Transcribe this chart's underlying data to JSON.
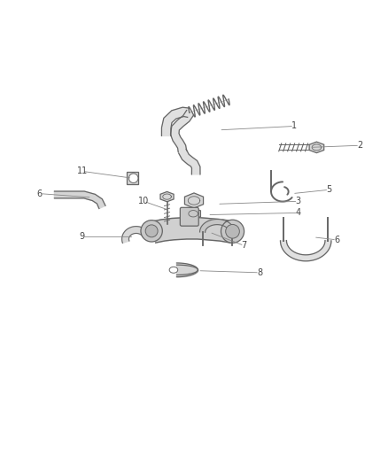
{
  "background_color": "#ffffff",
  "fig_width": 4.38,
  "fig_height": 5.33,
  "dpi": 100,
  "outline_color": "#666666",
  "label_color": "#444444",
  "leader_color": "#888888",
  "label_map": {
    "1": [
      0.76,
      0.785,
      0.565,
      0.775
    ],
    "2": [
      0.93,
      0.735,
      0.8,
      0.73
    ],
    "3": [
      0.77,
      0.59,
      0.56,
      0.583
    ],
    "4": [
      0.77,
      0.56,
      0.535,
      0.555
    ],
    "5": [
      0.85,
      0.62,
      0.755,
      0.61
    ],
    "6a": [
      0.1,
      0.61,
      0.235,
      0.6
    ],
    "6b": [
      0.87,
      0.49,
      0.81,
      0.497
    ],
    "7": [
      0.63,
      0.475,
      0.54,
      0.51
    ],
    "8": [
      0.67,
      0.405,
      0.51,
      0.41
    ],
    "9": [
      0.21,
      0.498,
      0.345,
      0.498
    ],
    "10": [
      0.37,
      0.59,
      0.435,
      0.567
    ],
    "11": [
      0.21,
      0.668,
      0.34,
      0.65
    ]
  }
}
